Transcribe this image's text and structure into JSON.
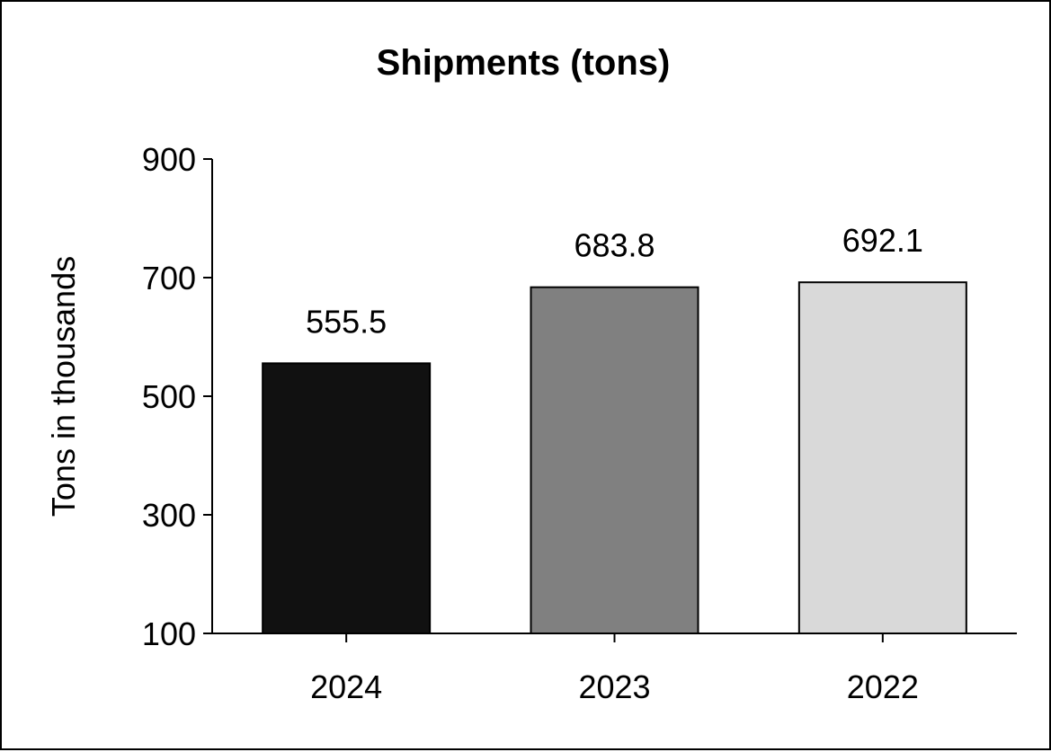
{
  "chart_data": {
    "type": "bar",
    "title": "Shipments (tons)",
    "xlabel": "",
    "ylabel": "Tons in thousands",
    "categories": [
      "2024",
      "2023",
      "2022"
    ],
    "values": [
      555.5,
      683.8,
      692.1
    ],
    "value_labels": [
      "555.5",
      "683.8",
      "692.1"
    ],
    "bar_colors": [
      "#111111",
      "#808080",
      "#d9d9d9"
    ],
    "ylim": [
      100,
      900
    ],
    "yticks": [
      100,
      300,
      500,
      700,
      900
    ],
    "grid": false,
    "legend": "none"
  }
}
